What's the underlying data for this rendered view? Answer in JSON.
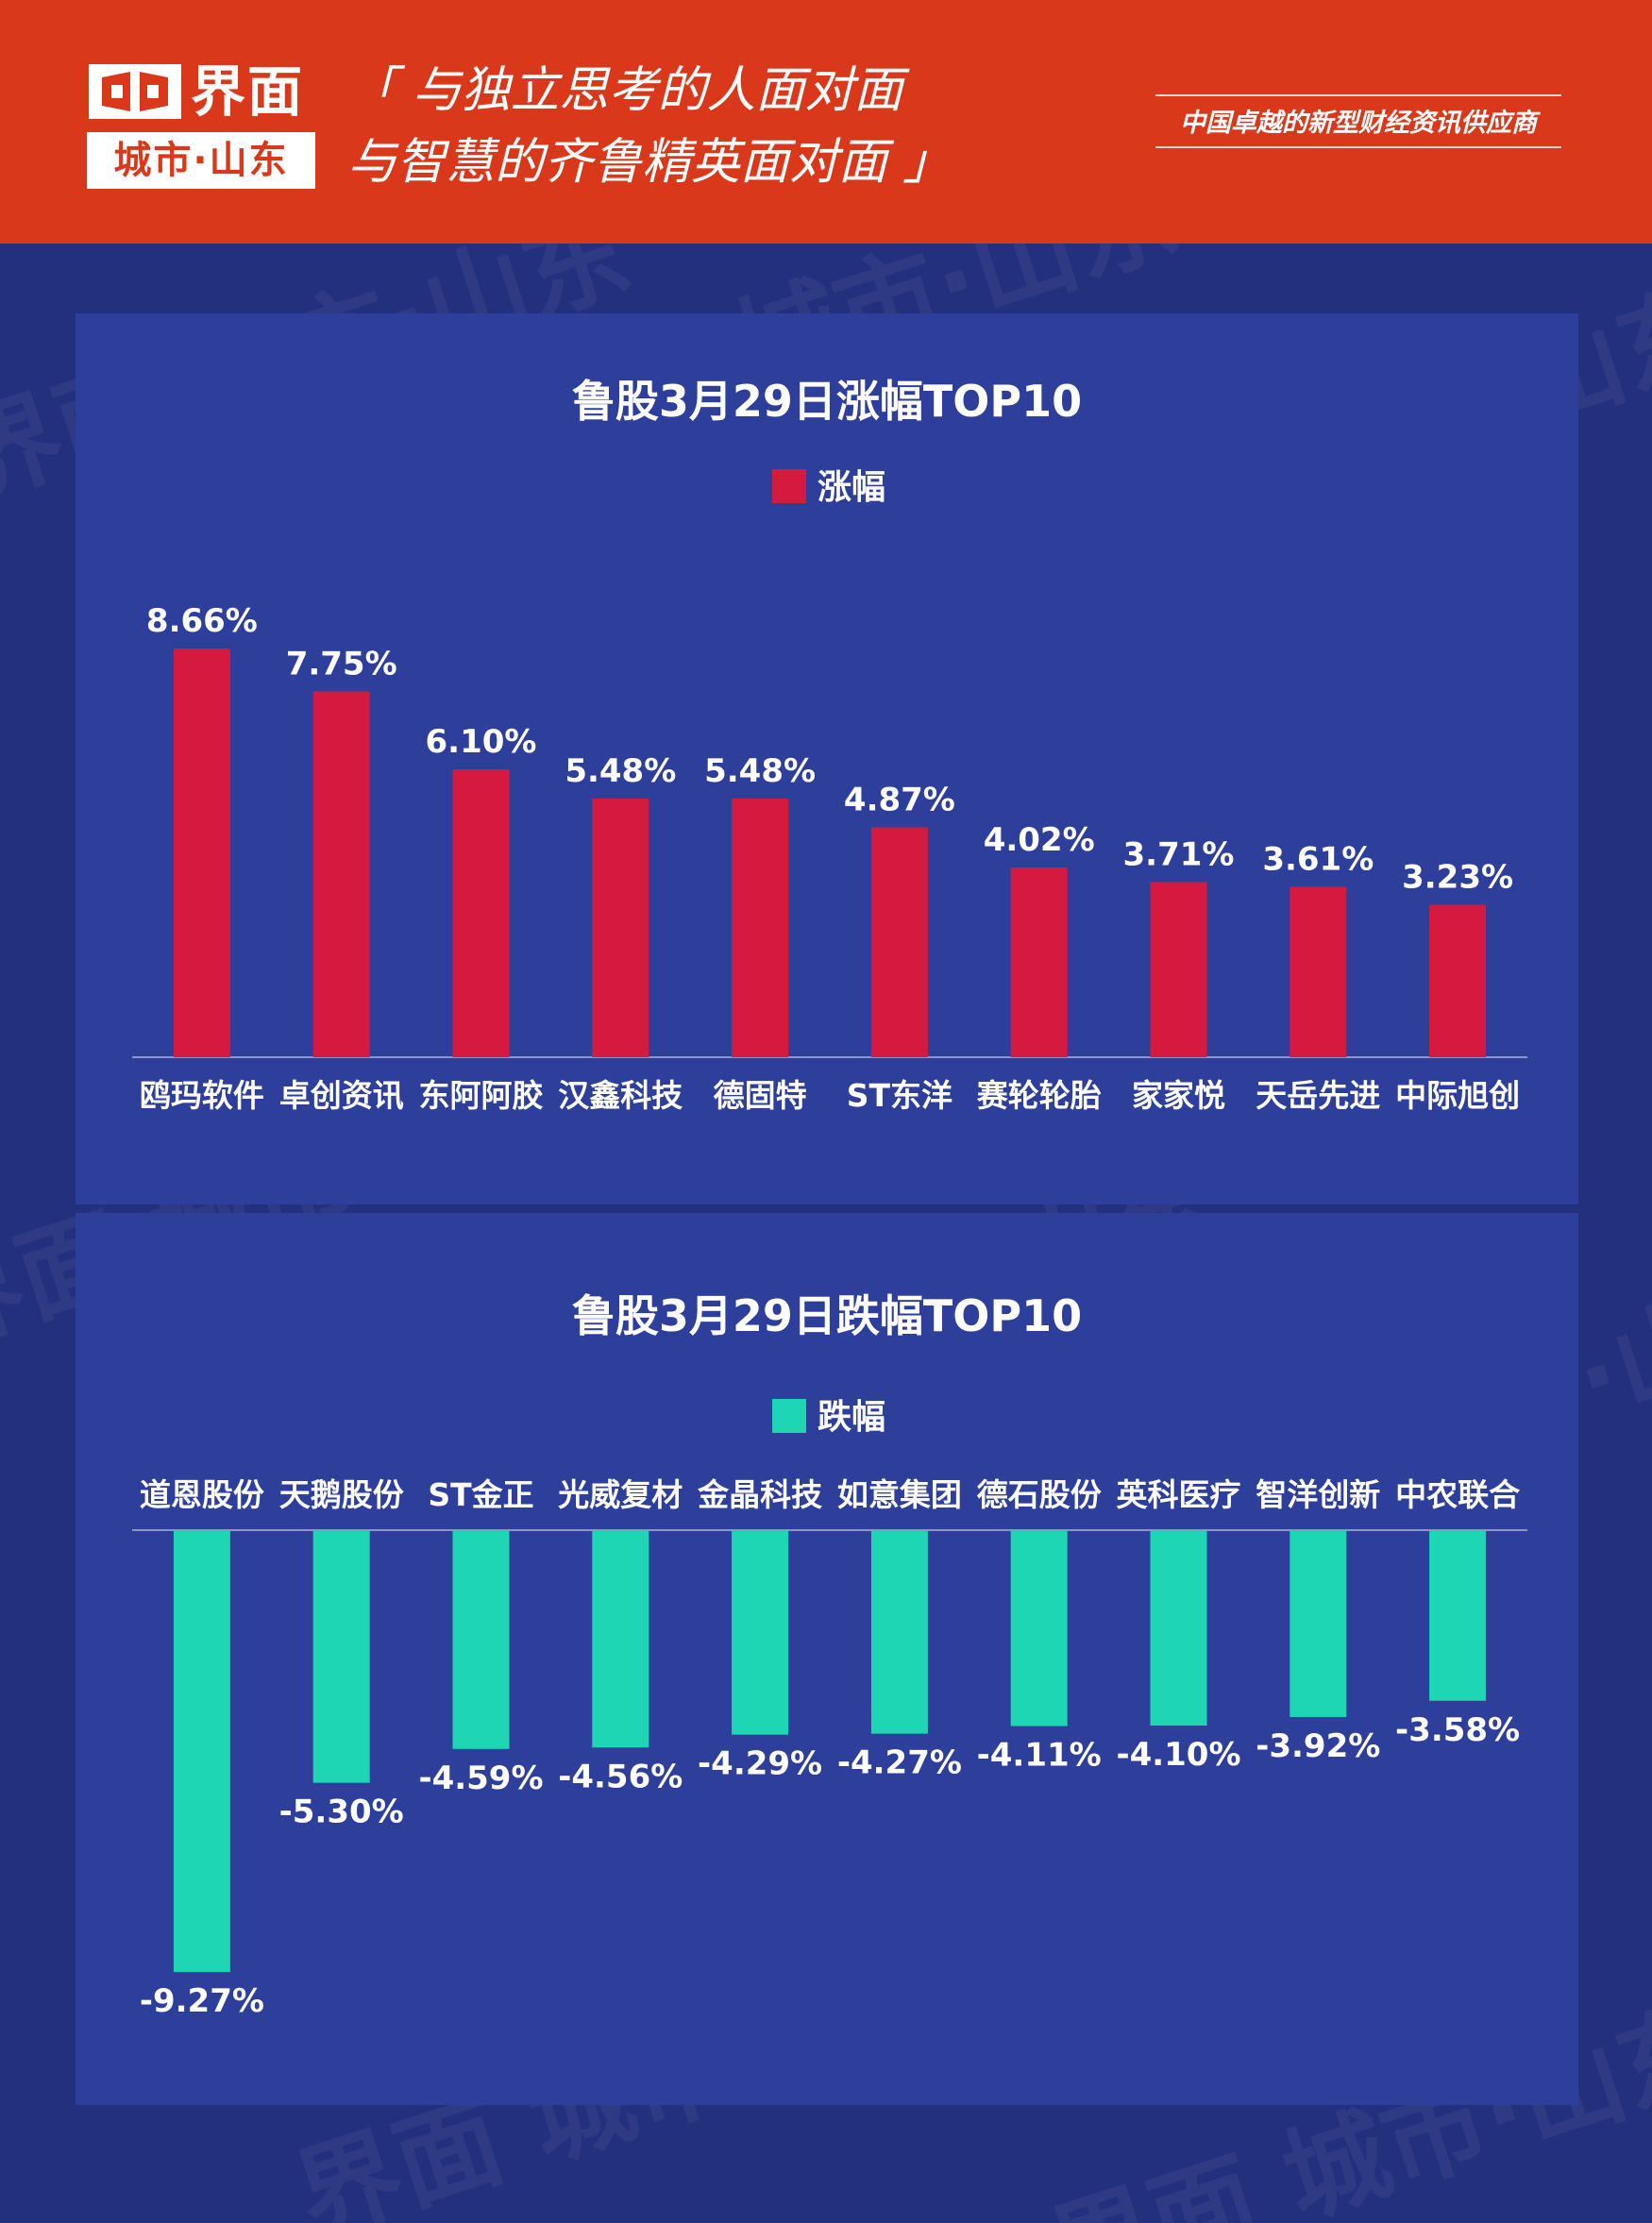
{
  "header": {
    "logo_word": "界面",
    "logo_badge": "城市·山东",
    "slogan_line1": "「 与独立思考的人面对面",
    "slogan_line2": "与智慧的齐鲁精英面对面 」",
    "tagline": "中国卓越的新型财经资讯供应商",
    "watermark_text": "界面 城市·山东"
  },
  "colors": {
    "header_bg": "#d9381b",
    "page_bg": "#23307e",
    "panel_bg": "#2e3e9b",
    "gain_bar": "#d6193e",
    "loss_bar": "#1ed6b4"
  },
  "chart_data": [
    {
      "type": "bar",
      "title": "鲁股3月29日涨幅TOP10",
      "legend": "涨幅",
      "legend_position": "top-center",
      "categories": [
        "鸥玛软件",
        "卓创资讯",
        "东阿阿胶",
        "汉鑫科技",
        "德固特",
        "ST东洋",
        "赛轮轮胎",
        "家家悦",
        "天岳先进",
        "中际旭创"
      ],
      "values": [
        8.66,
        7.75,
        6.1,
        5.48,
        5.48,
        4.87,
        4.02,
        3.71,
        3.61,
        3.23
      ],
      "labels": [
        "8.66%",
        "7.75%",
        "6.10%",
        "5.48%",
        "5.48%",
        "4.87%",
        "4.02%",
        "3.71%",
        "3.61%",
        "3.23%"
      ],
      "unit": "%",
      "ylim": [
        0,
        10
      ],
      "grid": false,
      "color": "#d6193e"
    },
    {
      "type": "bar",
      "title": "鲁股3月29日跌幅TOP10",
      "legend": "跌幅",
      "legend_position": "top-center",
      "categories": [
        "道恩股份",
        "天鹅股份",
        "ST金正",
        "光威复材",
        "金晶科技",
        "如意集团",
        "德石股份",
        "英科医疗",
        "智洋创新",
        "中农联合"
      ],
      "values": [
        -9.27,
        -5.3,
        -4.59,
        -4.56,
        -4.29,
        -4.27,
        -4.11,
        -4.1,
        -3.92,
        -3.58
      ],
      "labels": [
        "-9.27%",
        "-5.30%",
        "-4.59%",
        "-4.56%",
        "-4.29%",
        "-4.27%",
        "-4.11%",
        "-4.10%",
        "-3.92%",
        "-3.58%"
      ],
      "unit": "%",
      "ylim": [
        -10,
        0
      ],
      "grid": false,
      "color": "#1ed6b4"
    }
  ]
}
